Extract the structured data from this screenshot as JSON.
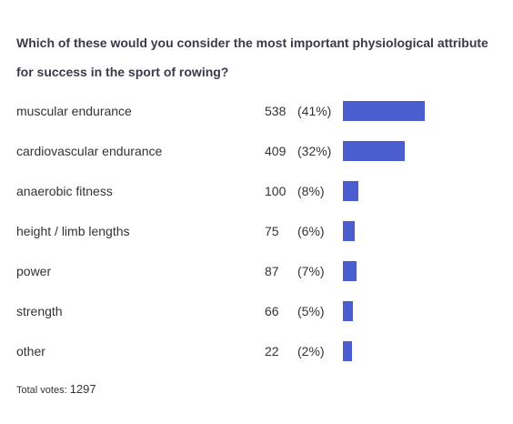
{
  "question": {
    "text": "Which of these would you consider the most important physiological attribute for success in the sport of rowing?"
  },
  "chart_data": {
    "type": "bar",
    "orientation": "horizontal",
    "categories": [
      "muscular endurance",
      "cardiovascular endurance",
      "anaerobic fitness",
      "height / limb lengths",
      "power",
      "strength",
      "other"
    ],
    "values": [
      538,
      409,
      100,
      75,
      87,
      66,
      22
    ],
    "percent_labels": [
      "(41%)",
      "(32%)",
      "(8%)",
      "(6%)",
      "(7%)",
      "(5%)",
      "(2%)"
    ],
    "bar_color": "#4a5ed0",
    "grid": false
  },
  "footer": {
    "total_label": "Total votes:",
    "total_value": "1297"
  }
}
